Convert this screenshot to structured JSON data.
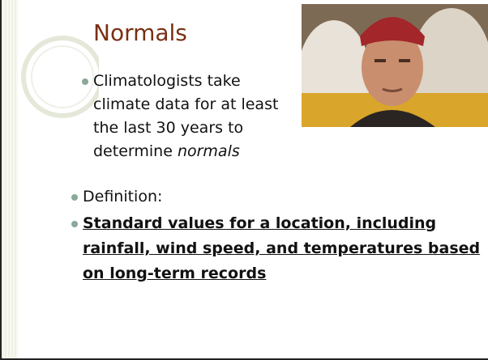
{
  "slide": {
    "title": "Normals",
    "bullets": [
      {
        "text": "Climatologists take climate data for at least the last 30 years to determine",
        "emphasis": "normals"
      },
      {
        "text": "Definition:"
      },
      {
        "text": "Standard values for a location, including rainfall, wind speed, and temperatures based on long-term records"
      }
    ]
  }
}
